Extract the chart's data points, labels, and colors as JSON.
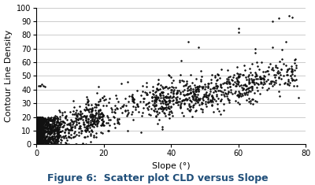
{
  "title": "Figure 6:  Scatter plot CLD versus Slope",
  "xlabel": "Slope (°)",
  "ylabel": "Contour Line Density",
  "xlim": [
    0,
    80
  ],
  "ylim": [
    0,
    100
  ],
  "xticks": [
    0,
    20,
    40,
    60,
    80
  ],
  "yticks": [
    0,
    10,
    20,
    30,
    40,
    50,
    60,
    70,
    80,
    90,
    100
  ],
  "marker": ".",
  "marker_color": "#111111",
  "marker_size": 2.5,
  "background_color": "#ffffff",
  "grid_color": "#cccccc",
  "title_color": "#1F4E79",
  "title_fontsize": 9,
  "axis_fontsize": 8,
  "seed": 42
}
